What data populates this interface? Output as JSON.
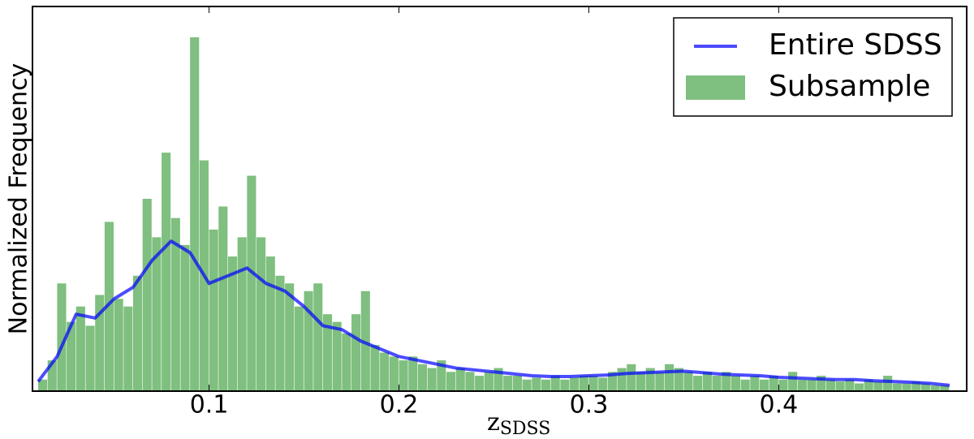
{
  "chart_data": {
    "type": "histogram",
    "x_label": "z",
    "x_label_subscript": "SDSS",
    "y_label": "Normalized Frequency",
    "xlim": [
      0.007,
      0.499
    ],
    "ylim": [
      0,
      100
    ],
    "xticks": [
      0.1,
      0.2,
      0.3,
      0.4
    ],
    "legend": "upper right",
    "series": [
      {
        "name": "Entire SDSS",
        "type": "line",
        "color": "#0000ff",
        "x": [
          0.01,
          0.02,
          0.03,
          0.04,
          0.05,
          0.06,
          0.07,
          0.08,
          0.09,
          0.1,
          0.11,
          0.12,
          0.13,
          0.14,
          0.15,
          0.16,
          0.17,
          0.18,
          0.19,
          0.2,
          0.21,
          0.22,
          0.23,
          0.24,
          0.25,
          0.26,
          0.27,
          0.28,
          0.29,
          0.3,
          0.31,
          0.32,
          0.33,
          0.34,
          0.35,
          0.36,
          0.37,
          0.38,
          0.39,
          0.4,
          0.41,
          0.42,
          0.43,
          0.44,
          0.45,
          0.46,
          0.47,
          0.48,
          0.49
        ],
        "values": [
          2.5,
          9,
          20,
          19,
          24,
          27,
          34,
          39,
          36,
          28,
          30,
          32,
          28,
          26,
          22,
          17,
          16,
          13,
          11,
          9,
          8,
          7,
          6,
          5.5,
          5,
          4.5,
          4,
          3.8,
          3.8,
          4,
          4.2,
          4.6,
          4.8,
          5,
          5.2,
          4.8,
          4.4,
          4.2,
          4,
          3.6,
          3.4,
          3.2,
          3,
          3,
          2.7,
          2.5,
          2.3,
          2,
          1.5
        ]
      },
      {
        "name": "Subsample",
        "type": "histogram",
        "color": "#008000",
        "bins": [
          0.01,
          0.015,
          0.02,
          0.025,
          0.03,
          0.035,
          0.04,
          0.045,
          0.05,
          0.055,
          0.06,
          0.065,
          0.07,
          0.075,
          0.08,
          0.085,
          0.09,
          0.095,
          0.1,
          0.105,
          0.11,
          0.115,
          0.12,
          0.125,
          0.13,
          0.135,
          0.14,
          0.145,
          0.15,
          0.155,
          0.16,
          0.165,
          0.17,
          0.175,
          0.18,
          0.185,
          0.19,
          0.195,
          0.2,
          0.205,
          0.21,
          0.215,
          0.22,
          0.225,
          0.23,
          0.235,
          0.24,
          0.245,
          0.25,
          0.255,
          0.26,
          0.265,
          0.27,
          0.275,
          0.28,
          0.285,
          0.29,
          0.295,
          0.3,
          0.305,
          0.31,
          0.315,
          0.32,
          0.325,
          0.33,
          0.335,
          0.34,
          0.345,
          0.35,
          0.355,
          0.36,
          0.365,
          0.37,
          0.375,
          0.38,
          0.385,
          0.39,
          0.395,
          0.4,
          0.405,
          0.41,
          0.415,
          0.42,
          0.425,
          0.43,
          0.435,
          0.44,
          0.445,
          0.45,
          0.455,
          0.46,
          0.465,
          0.47,
          0.475,
          0.48,
          0.485,
          0.49
        ],
        "values": [
          3,
          8,
          28,
          18,
          22,
          17,
          25,
          44,
          24,
          22,
          30,
          50,
          40,
          62,
          45,
          38,
          92,
          60,
          42,
          48,
          35,
          40,
          56,
          40,
          35,
          30,
          28,
          22,
          26,
          28,
          20,
          18,
          15,
          20,
          26,
          12,
          10,
          9,
          8,
          9,
          7,
          6,
          8,
          5,
          6,
          5,
          4,
          5,
          6,
          4,
          4,
          3,
          3.5,
          3,
          4,
          3,
          3.5,
          4,
          4,
          3.5,
          5,
          6,
          7,
          5,
          6,
          5,
          7,
          6,
          5,
          4,
          5,
          4,
          5,
          4,
          3,
          4,
          3,
          4,
          3,
          5,
          3,
          3,
          4,
          3,
          2.5,
          3,
          2,
          3,
          2.5,
          4,
          2,
          2,
          2.5,
          2,
          1.5,
          1.5
        ]
      }
    ]
  }
}
